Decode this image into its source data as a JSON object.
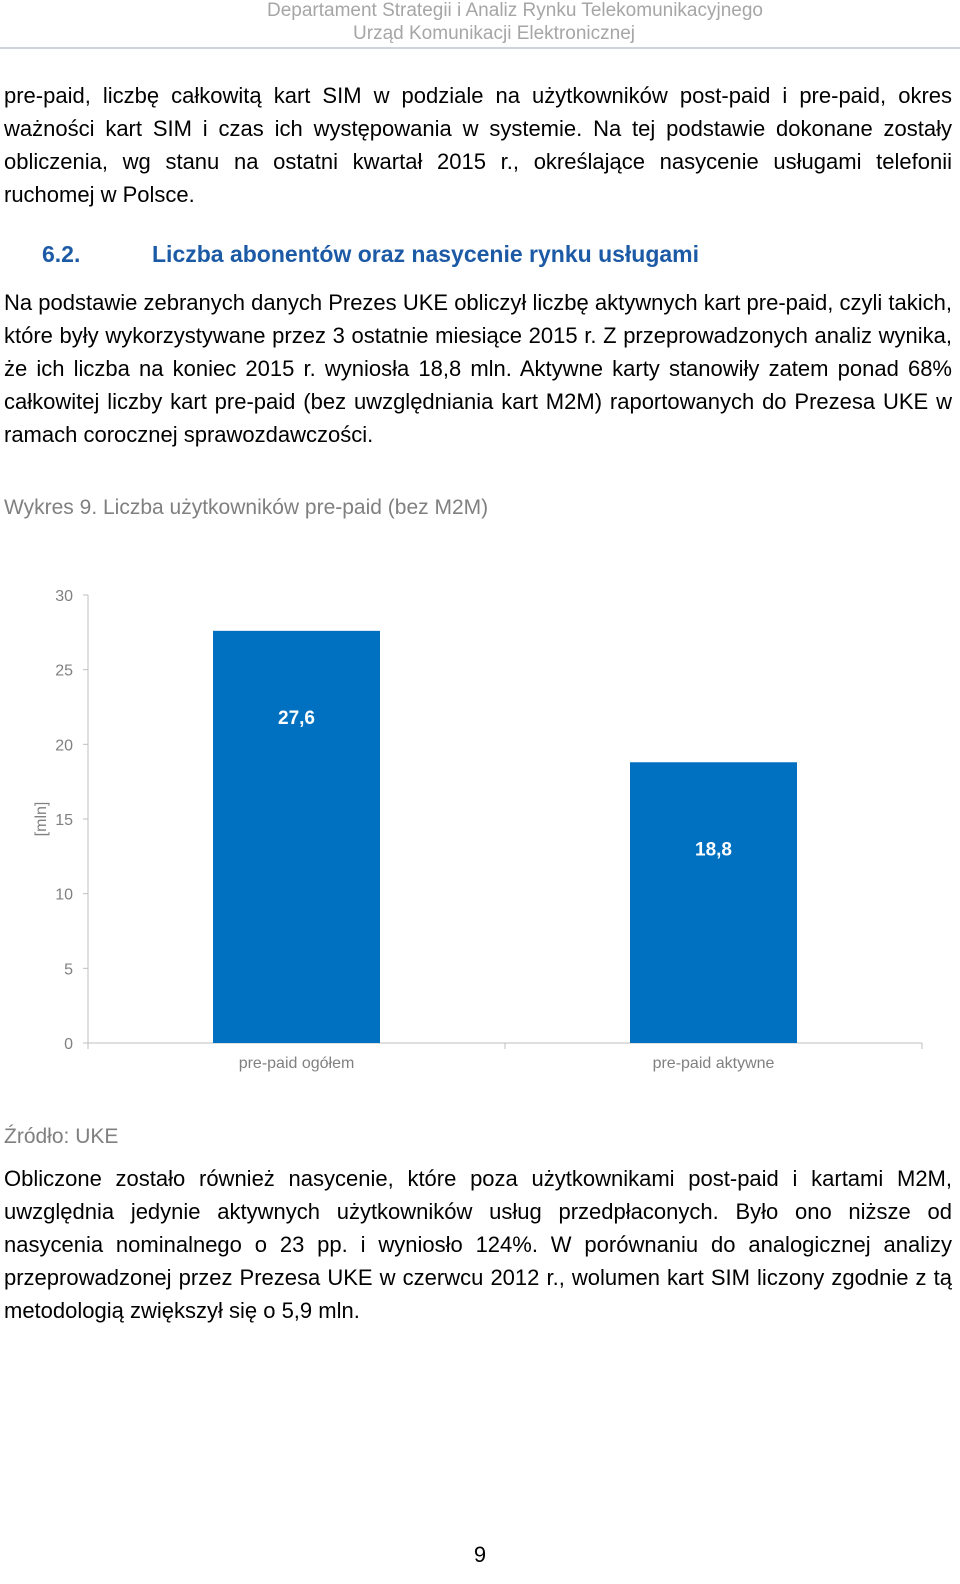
{
  "header": {
    "line1": "Departament Strategii i Analiz Rynku Telekomunikacyjnego",
    "line2": "Urząd Komunikacji Elektronicznej"
  },
  "paragraph_intro": "pre-paid, liczbę całkowitą kart SIM w podziale na użytkowników post-paid i pre-paid, okres ważności kart SIM i czas ich występowania w systemie. Na tej podstawie dokonane zostały obliczenia, wg stanu na ostatni kwartał 2015 r., określające nasycenie usługami telefonii ruchomej w Polsce.",
  "section": {
    "number": "6.2.",
    "title": "Liczba abonentów oraz nasycenie rynku usługami"
  },
  "paragraph_main": "Na podstawie zebranych danych Prezes UKE obliczył liczbę aktywnych kart pre-paid, czyli takich, które były wykorzystywane przez 3 ostatnie miesiące 2015 r. Z przeprowadzonych analiz wynika, że ich liczba na koniec 2015 r. wyniosła 18,8 mln. Aktywne karty stanowiły zatem ponad 68% całkowitej liczby kart pre-paid (bez uwzględniania kart M2M) raportowanych do Prezesa UKE w ramach corocznej sprawozdawczości.",
  "figure_caption": "Wykres 9. Liczba użytkowników pre-paid (bez M2M)",
  "chart_data": {
    "type": "bar",
    "categories": [
      "pre-paid ogółem",
      "pre-paid aktywne"
    ],
    "values": [
      27.6,
      18.8
    ],
    "data_labels": [
      "27,6",
      "18,8"
    ],
    "ylabel": "[mln]",
    "xlabel": "",
    "ylim": [
      0,
      30
    ],
    "yticks": [
      0,
      5,
      10,
      15,
      20,
      25,
      30
    ],
    "bar_color": "#0070c0",
    "grid": false,
    "legend": "none"
  },
  "source": "Źródło: UKE",
  "paragraph_after": "Obliczone zostało również nasycenie, które poza użytkownikami post-paid i kartami M2M, uwzględnia jedynie aktywnych użytkowników usług przedpłaconych. Było ono niższe od nasycenia nominalnego o 23 pp. i wyniosło 124%. W porównaniu do analogicznej analizy przeprowadzonej przez Prezesa UKE w czerwcu 2012 r., wolumen kart SIM liczony zgodnie z tą metodologią zwiększył się o 5,9 mln.",
  "page_number": "9"
}
